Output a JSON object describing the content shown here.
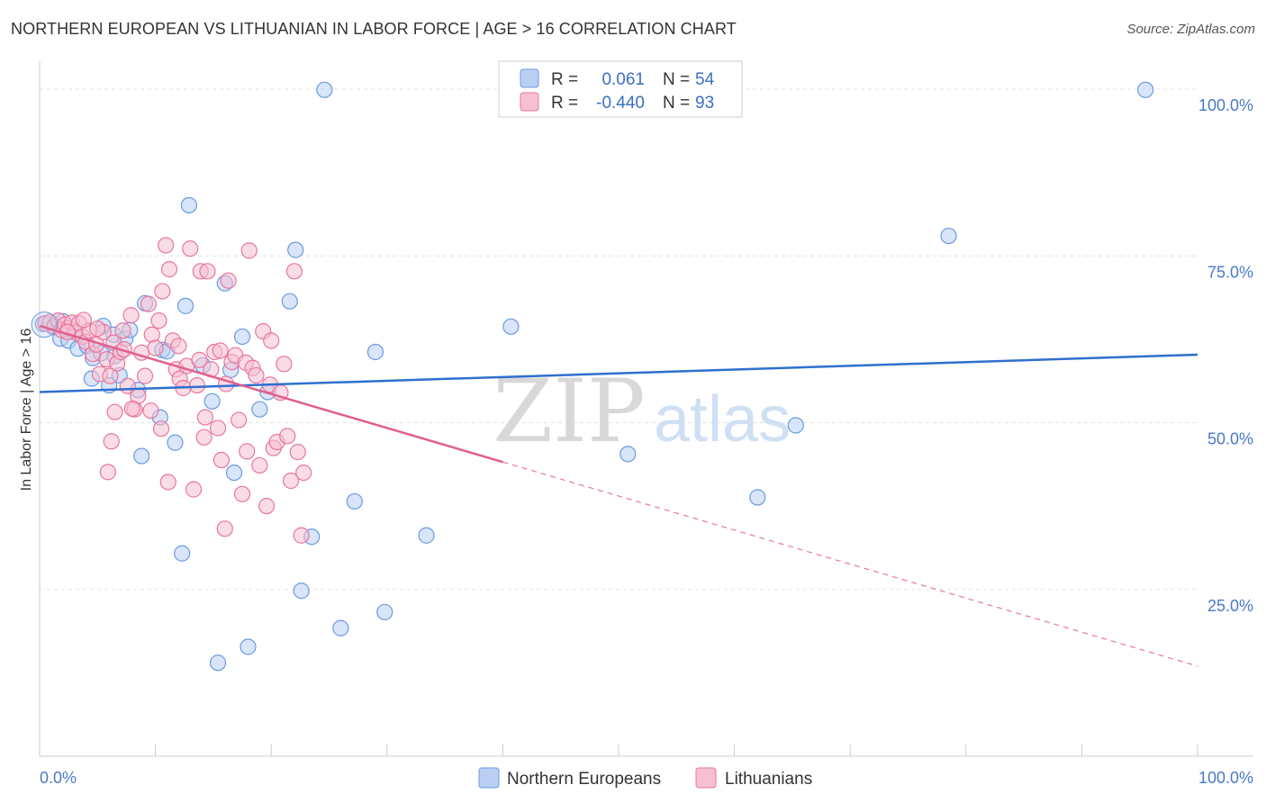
{
  "title": "NORTHERN EUROPEAN VS LITHUANIAN IN LABOR FORCE | AGE > 16 CORRELATION CHART",
  "source": "Source: ZipAtlas.com",
  "watermark": {
    "zip": "ZIP",
    "atlas": "atlas"
  },
  "chart_data": {
    "type": "scatter",
    "ylabel": "In Labor Force | Age > 16",
    "xlim": [
      0,
      100
    ],
    "ylim": [
      0,
      105
    ],
    "x_tick_labels": {
      "min": "0.0%",
      "max": "100.0%"
    },
    "y_ticks": [
      {
        "value": 25,
        "label": "25.0%"
      },
      {
        "value": 50,
        "label": "50.0%"
      },
      {
        "value": 75,
        "label": "75.0%"
      },
      {
        "value": 100,
        "label": "100.0%"
      }
    ],
    "grid": "horizontal dashed",
    "legend_position": "top-center",
    "series": [
      {
        "name": "Northern Europeans",
        "color": "#6a9be0",
        "fill": "#b9d0f2",
        "r_label": "R =",
        "r_value": "0.061",
        "n_label": "N =",
        "n_value": "54",
        "trend": {
          "x0": 0,
          "y0": 54.6,
          "x1": 100,
          "y1": 60.2,
          "dashed_from": null
        },
        "points": [
          [
            0.3,
            64.8
          ],
          [
            1.2,
            64.3
          ],
          [
            1.8,
            62.6
          ],
          [
            2.5,
            62.3
          ],
          [
            3.3,
            61.1
          ],
          [
            4.1,
            61.5
          ],
          [
            4.6,
            59.7
          ],
          [
            4.5,
            56.6
          ],
          [
            5.3,
            60.4
          ],
          [
            5.5,
            64.5
          ],
          [
            6.0,
            55.6
          ],
          [
            6.4,
            63.2
          ],
          [
            6.9,
            57.1
          ],
          [
            7.4,
            62.6
          ],
          [
            7.8,
            63.9
          ],
          [
            8.5,
            54.9
          ],
          [
            8.8,
            45.0
          ],
          [
            9.1,
            67.9
          ],
          [
            10.4,
            50.8
          ],
          [
            10.6,
            60.9
          ],
          [
            11.0,
            60.7
          ],
          [
            11.7,
            47.0
          ],
          [
            12.6,
            67.5
          ],
          [
            12.9,
            82.6
          ],
          [
            14.1,
            58.6
          ],
          [
            14.9,
            53.2
          ],
          [
            15.4,
            14.0
          ],
          [
            16.0,
            70.9
          ],
          [
            16.5,
            57.9
          ],
          [
            16.8,
            42.5
          ],
          [
            17.5,
            62.9
          ],
          [
            18.0,
            16.4
          ],
          [
            19.0,
            52.0
          ],
          [
            19.7,
            54.6
          ],
          [
            21.6,
            68.2
          ],
          [
            22.1,
            75.9
          ],
          [
            22.6,
            24.8
          ],
          [
            23.5,
            32.9
          ],
          [
            24.6,
            99.9
          ],
          [
            26.0,
            19.2
          ],
          [
            27.2,
            38.2
          ],
          [
            29.0,
            60.6
          ],
          [
            29.8,
            21.6
          ],
          [
            33.4,
            33.1
          ],
          [
            40.7,
            64.4
          ],
          [
            50.8,
            45.3
          ],
          [
            62.0,
            38.8
          ],
          [
            65.3,
            49.6
          ],
          [
            78.5,
            78.0
          ],
          [
            95.5,
            99.9
          ],
          [
            2.0,
            65.2
          ],
          [
            3.0,
            63.8
          ],
          [
            12.3,
            30.4
          ],
          [
            6.5,
            60.0
          ]
        ]
      },
      {
        "name": "Lithuanians",
        "color": "#e8769f",
        "fill": "#f6bfd2",
        "r_label": "R =",
        "r_value": "-0.440",
        "n_label": "N =",
        "n_value": "93",
        "trend": {
          "x0": 0,
          "y0": 64.5,
          "x1": 100,
          "y1": 13.5,
          "dashed_from": 40
        },
        "points": [
          [
            0.5,
            64.9
          ],
          [
            0.9,
            65.1
          ],
          [
            1.3,
            64.5
          ],
          [
            1.6,
            65.3
          ],
          [
            1.9,
            63.9
          ],
          [
            2.2,
            64.7
          ],
          [
            2.5,
            64.2
          ],
          [
            2.8,
            65.0
          ],
          [
            3.1,
            63.5
          ],
          [
            3.4,
            64.9
          ],
          [
            3.7,
            62.9
          ],
          [
            4.0,
            62.1
          ],
          [
            4.3,
            63.8
          ],
          [
            4.6,
            60.3
          ],
          [
            4.9,
            61.7
          ],
          [
            5.2,
            57.3
          ],
          [
            5.5,
            63.6
          ],
          [
            5.8,
            59.5
          ],
          [
            6.1,
            57.0
          ],
          [
            6.4,
            62.0
          ],
          [
            6.7,
            58.9
          ],
          [
            7.0,
            60.6
          ],
          [
            7.3,
            61.0
          ],
          [
            7.6,
            55.5
          ],
          [
            7.9,
            66.1
          ],
          [
            8.2,
            52.0
          ],
          [
            8.5,
            54.0
          ],
          [
            8.8,
            60.5
          ],
          [
            9.1,
            57.0
          ],
          [
            9.4,
            67.8
          ],
          [
            9.7,
            63.2
          ],
          [
            10.0,
            61.2
          ],
          [
            10.3,
            65.3
          ],
          [
            10.6,
            69.7
          ],
          [
            10.9,
            76.6
          ],
          [
            11.2,
            73.0
          ],
          [
            11.5,
            62.3
          ],
          [
            11.8,
            58.0
          ],
          [
            12.1,
            56.6
          ],
          [
            12.4,
            55.2
          ],
          [
            12.7,
            58.5
          ],
          [
            13.0,
            76.1
          ],
          [
            13.3,
            40.0
          ],
          [
            13.6,
            55.6
          ],
          [
            13.9,
            72.7
          ],
          [
            14.2,
            47.8
          ],
          [
            14.5,
            72.7
          ],
          [
            14.8,
            58.0
          ],
          [
            15.1,
            60.6
          ],
          [
            15.4,
            49.2
          ],
          [
            15.7,
            44.4
          ],
          [
            16.0,
            34.1
          ],
          [
            16.3,
            71.3
          ],
          [
            16.6,
            59.1
          ],
          [
            16.9,
            60.1
          ],
          [
            17.2,
            50.4
          ],
          [
            17.5,
            39.3
          ],
          [
            17.8,
            59.0
          ],
          [
            18.1,
            75.8
          ],
          [
            18.4,
            58.2
          ],
          [
            18.7,
            57.1
          ],
          [
            19.0,
            43.6
          ],
          [
            19.3,
            63.7
          ],
          [
            19.6,
            37.5
          ],
          [
            19.9,
            55.7
          ],
          [
            20.2,
            46.2
          ],
          [
            20.5,
            47.1
          ],
          [
            20.8,
            54.5
          ],
          [
            21.1,
            58.8
          ],
          [
            21.4,
            48.0
          ],
          [
            21.7,
            41.3
          ],
          [
            22.0,
            72.7
          ],
          [
            22.3,
            45.6
          ],
          [
            22.6,
            33.1
          ],
          [
            5.9,
            42.6
          ],
          [
            6.2,
            47.2
          ],
          [
            6.5,
            51.6
          ],
          [
            9.6,
            51.8
          ],
          [
            10.5,
            49.1
          ],
          [
            11.1,
            41.1
          ],
          [
            12.0,
            61.5
          ],
          [
            14.3,
            50.8
          ],
          [
            15.6,
            60.8
          ],
          [
            17.9,
            45.7
          ],
          [
            20.0,
            62.3
          ],
          [
            22.8,
            42.5
          ],
          [
            8.0,
            52.1
          ],
          [
            7.2,
            63.8
          ],
          [
            5.0,
            64.1
          ],
          [
            3.8,
            65.4
          ],
          [
            2.4,
            63.6
          ],
          [
            13.8,
            59.4
          ],
          [
            16.1,
            55.8
          ]
        ]
      }
    ]
  }
}
